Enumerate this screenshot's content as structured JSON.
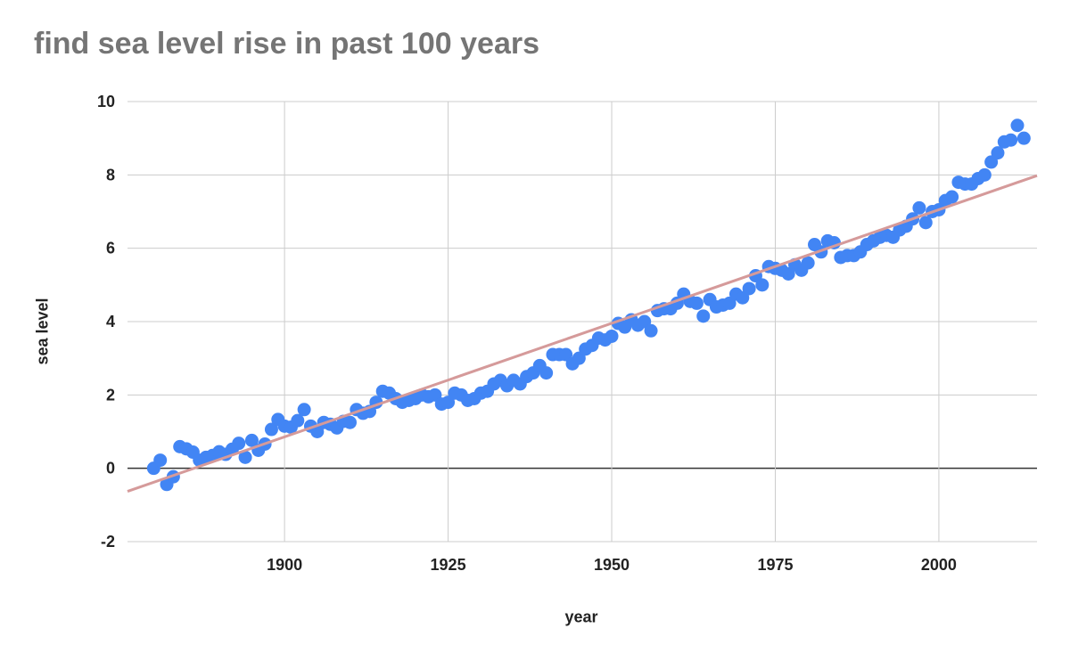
{
  "chart_data": {
    "type": "scatter",
    "title": "find sea level rise in past 100 years",
    "xlabel": "year",
    "ylabel": "sea level",
    "xlim": [
      1876,
      2015
    ],
    "ylim": [
      -2,
      10
    ],
    "xticks": [
      "1900",
      "1925",
      "1950",
      "1975",
      "2000"
    ],
    "yticks": [
      "-2",
      "0",
      "2",
      "4",
      "6",
      "8",
      "10"
    ],
    "grid": true,
    "legend": "none",
    "series": [
      {
        "x": [
          1880,
          1881,
          1882,
          1883,
          1884,
          1885,
          1886,
          1887,
          1888,
          1889,
          1890,
          1891,
          1892,
          1893,
          1894,
          1895,
          1896,
          1897,
          1898,
          1899,
          1900,
          1901,
          1902,
          1903,
          1904,
          1905,
          1906,
          1907,
          1908,
          1909,
          1910,
          1911,
          1912,
          1913,
          1914,
          1915,
          1916,
          1917,
          1918,
          1919,
          1920,
          1921,
          1922,
          1923,
          1924,
          1925,
          1926,
          1927,
          1928,
          1929,
          1930,
          1931,
          1932,
          1933,
          1934,
          1935,
          1936,
          1937,
          1938,
          1939,
          1940,
          1941,
          1942,
          1943,
          1944,
          1945,
          1946,
          1947,
          1948,
          1949,
          1950,
          1951,
          1952,
          1953,
          1954,
          1955,
          1956,
          1957,
          1958,
          1959,
          1960,
          1961,
          1962,
          1963,
          1964,
          1965,
          1966,
          1967,
          1968,
          1969,
          1970,
          1971,
          1972,
          1973,
          1974,
          1975,
          1976,
          1977,
          1978,
          1979,
          1980,
          1981,
          1982,
          1983,
          1984,
          1985,
          1986,
          1987,
          1988,
          1989,
          1990,
          1991,
          1992,
          1993,
          1994,
          1995,
          1996,
          1997,
          1998,
          1999,
          2000,
          2001,
          2002,
          2003,
          2004,
          2005,
          2006,
          2007,
          2008,
          2009,
          2010,
          2011,
          2012,
          2013
        ],
        "values": [
          0.0,
          0.22,
          -0.44,
          -0.23,
          0.59,
          0.53,
          0.44,
          0.22,
          0.3,
          0.35,
          0.45,
          0.38,
          0.52,
          0.68,
          0.3,
          0.76,
          0.49,
          0.66,
          1.06,
          1.33,
          1.15,
          1.12,
          1.3,
          1.6,
          1.15,
          1.0,
          1.25,
          1.2,
          1.1,
          1.28,
          1.25,
          1.6,
          1.5,
          1.55,
          1.8,
          2.1,
          2.05,
          1.9,
          1.8,
          1.85,
          1.9,
          2.0,
          1.95,
          2.0,
          1.75,
          1.8,
          2.05,
          2.0,
          1.85,
          1.9,
          2.05,
          2.1,
          2.3,
          2.4,
          2.25,
          2.4,
          2.3,
          2.5,
          2.6,
          2.8,
          2.6,
          3.1,
          3.1,
          3.1,
          2.85,
          3.0,
          3.25,
          3.35,
          3.55,
          3.5,
          3.6,
          3.95,
          3.85,
          4.05,
          3.9,
          4.0,
          3.75,
          4.3,
          4.35,
          4.35,
          4.5,
          4.75,
          4.55,
          4.5,
          4.15,
          4.6,
          4.4,
          4.45,
          4.5,
          4.75,
          4.65,
          4.9,
          5.25,
          5.0,
          5.5,
          5.45,
          5.4,
          5.3,
          5.55,
          5.4,
          5.6,
          6.1,
          5.9,
          6.2,
          6.15,
          5.75,
          5.8,
          5.8,
          5.9,
          6.1,
          6.2,
          6.3,
          6.35,
          6.3,
          6.5,
          6.6,
          6.8,
          7.1,
          6.7,
          7.0,
          7.05,
          7.3,
          7.4,
          7.8,
          7.75,
          7.75,
          7.9,
          8.0,
          8.35,
          8.6,
          8.9,
          8.95,
          9.35,
          9.0
        ]
      }
    ],
    "trendline": {
      "x": [
        1876,
        2015
      ],
      "values": [
        -0.63,
        7.98
      ]
    },
    "colors": {
      "points": "#4285f4",
      "trendline": "#d59a9a",
      "grid": "#cccccc",
      "zero_axis": "#333333"
    }
  }
}
